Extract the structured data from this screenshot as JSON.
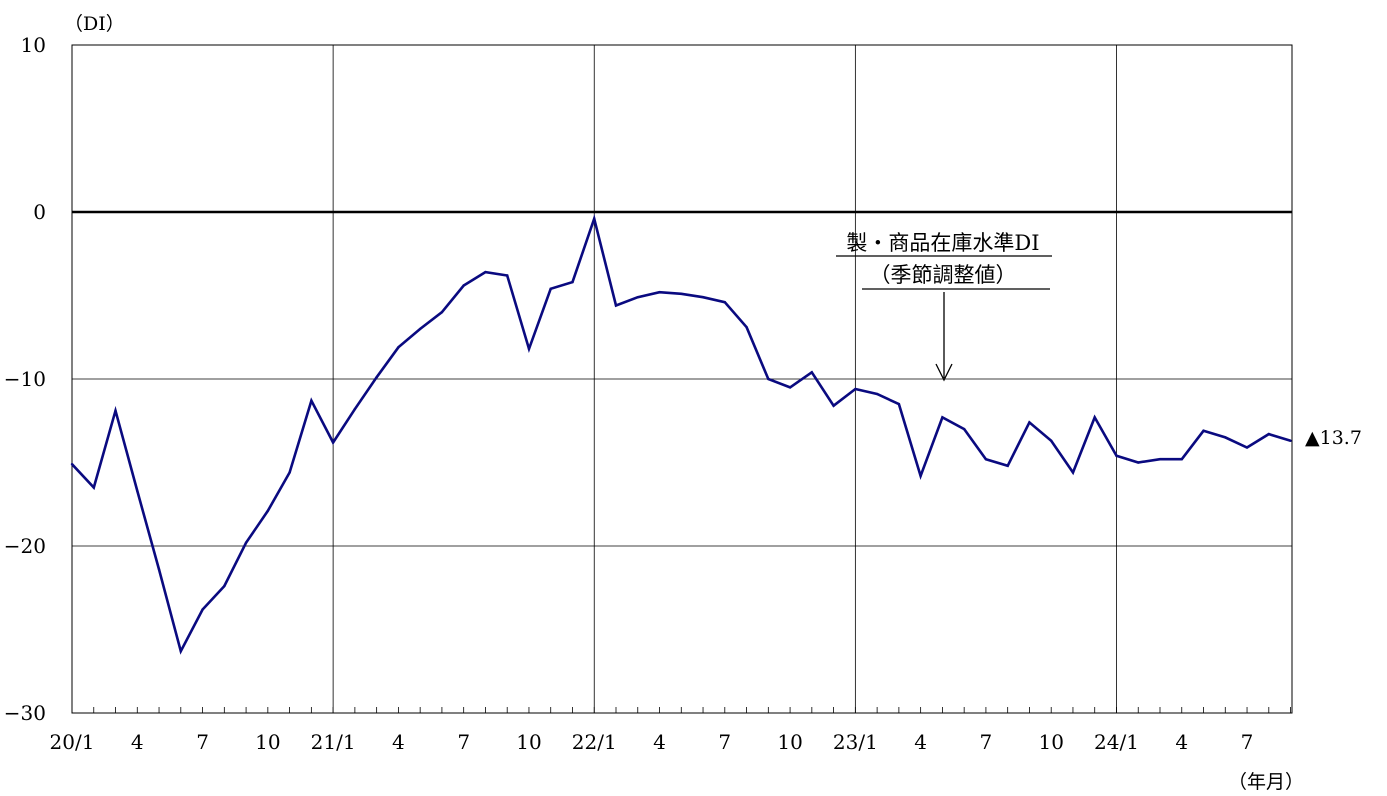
{
  "chart_data": {
    "type": "line",
    "y_unit_label": "（DI）",
    "x_unit_label": "（年月）",
    "ylim": [
      -30,
      10
    ],
    "y_ticks": [
      "10",
      "0",
      "−10",
      "−20",
      "−30"
    ],
    "x_tick_labels": [
      "20/1",
      "4",
      "7",
      "10",
      "21/1",
      "4",
      "7",
      "10",
      "22/1",
      "4",
      "7",
      "10",
      "23/1",
      "4",
      "7",
      "10",
      "24/1",
      "4",
      "7"
    ],
    "x": [
      "20/1",
      "20/2",
      "20/3",
      "20/4",
      "20/5",
      "20/6",
      "20/7",
      "20/8",
      "20/9",
      "20/10",
      "20/11",
      "20/12",
      "21/1",
      "21/2",
      "21/3",
      "21/4",
      "21/5",
      "21/6",
      "21/7",
      "21/8",
      "21/9",
      "21/10",
      "21/11",
      "21/12",
      "22/1",
      "22/2",
      "22/3",
      "22/4",
      "22/5",
      "22/6",
      "22/7",
      "22/8",
      "22/9",
      "22/10",
      "22/11",
      "22/12",
      "23/1",
      "23/2",
      "23/3",
      "23/4",
      "23/5",
      "23/6",
      "23/7",
      "23/8",
      "23/9",
      "23/10",
      "23/11",
      "23/12",
      "24/1",
      "24/2",
      "24/3",
      "24/4",
      "24/5",
      "24/6",
      "24/7",
      "24/8",
      "24/9"
    ],
    "series": [
      {
        "values": [
          -15.1,
          -16.5,
          -11.9,
          -16.7,
          -21.4,
          -26.3,
          -23.8,
          -22.4,
          -19.8,
          -17.9,
          -15.6,
          -11.3,
          -13.8,
          -11.8,
          -9.9,
          -8.1,
          -7.0,
          -6.0,
          -4.4,
          -3.6,
          -3.8,
          -8.2,
          -4.6,
          -4.2,
          -0.4,
          -5.6,
          -5.1,
          -4.8,
          -4.9,
          -5.1,
          -5.4,
          -6.9,
          -10.0,
          -10.5,
          -9.6,
          -11.6,
          -10.6,
          -10.9,
          -11.5,
          -15.8,
          -12.3,
          -13.0,
          -14.8,
          -15.2,
          -12.6,
          -13.7,
          -15.6,
          -12.3,
          -14.6,
          -15.0,
          -14.8,
          -14.8,
          -13.1,
          -13.5,
          -14.1,
          -13.3,
          -13.7
        ],
        "color": "#0a0a80"
      }
    ],
    "annotation": {
      "line1": "製・商品在庫水準DI",
      "line2": "（季節調整値）"
    },
    "last_value_label": "▲13.7",
    "grid": true,
    "zero_line": true
  }
}
